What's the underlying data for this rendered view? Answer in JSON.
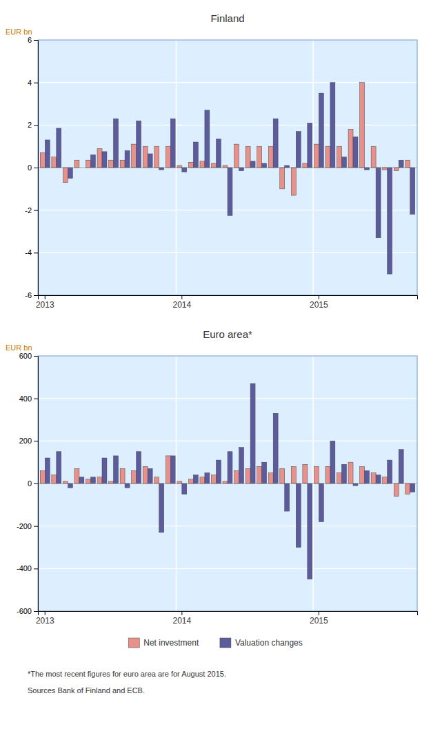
{
  "chart_data": [
    {
      "type": "bar",
      "title": "Finland",
      "ylabel": "EUR bn",
      "categories": [
        "2013",
        null,
        null,
        null,
        null,
        null,
        null,
        null,
        null,
        null,
        null,
        null,
        "2014",
        null,
        null,
        null,
        null,
        null,
        null,
        null,
        null,
        null,
        null,
        null,
        "2015",
        null,
        null,
        null,
        null,
        null,
        null,
        null,
        null
      ],
      "series": [
        {
          "name": "Net investment",
          "color": "#e8918a",
          "values": [
            0.7,
            0.5,
            -0.7,
            0.35,
            0.35,
            0.9,
            0.35,
            0.35,
            1.1,
            1.0,
            1.0,
            1.0,
            0.1,
            0.25,
            0.3,
            0.2,
            0.1,
            1.1,
            1.0,
            1.0,
            1.0,
            -1.0,
            -1.3,
            0.2,
            1.1,
            1.0,
            1.0,
            1.8,
            4.0,
            1.0,
            -0.1,
            -0.15,
            0.35
          ]
        },
        {
          "name": "Valuation changes",
          "color": "#5b5b9e",
          "values": [
            1.3,
            1.85,
            -0.5,
            0.0,
            0.6,
            0.75,
            2.3,
            0.8,
            2.2,
            0.65,
            -0.1,
            2.3,
            -0.2,
            1.2,
            2.7,
            1.35,
            -2.25,
            -0.15,
            0.3,
            0.2,
            2.3,
            0.1,
            1.7,
            2.1,
            3.5,
            4.0,
            0.5,
            1.45,
            -0.1,
            -3.3,
            -5.0,
            0.35,
            -2.2
          ]
        }
      ],
      "ylim": [
        -6,
        6
      ],
      "yticks": [
        -6,
        -4,
        -2,
        0,
        2,
        4,
        6
      ],
      "grid": true
    },
    {
      "type": "bar",
      "title": "Euro area*",
      "ylabel": "EUR bn",
      "categories": [
        "2013",
        null,
        null,
        null,
        null,
        null,
        null,
        null,
        null,
        null,
        null,
        null,
        "2014",
        null,
        null,
        null,
        null,
        null,
        null,
        null,
        null,
        null,
        null,
        null,
        "2015",
        null,
        null,
        null,
        null,
        null,
        null,
        null,
        null
      ],
      "series": [
        {
          "name": "Net investment",
          "color": "#e8918a",
          "values": [
            60,
            40,
            10,
            70,
            20,
            30,
            10,
            70,
            60,
            80,
            30,
            130,
            10,
            20,
            30,
            40,
            10,
            60,
            70,
            80,
            50,
            70,
            80,
            90,
            80,
            80,
            50,
            100,
            80,
            50,
            30,
            -60,
            -50
          ]
        },
        {
          "name": "Valuation changes",
          "color": "#5b5b9e",
          "values": [
            120,
            150,
            -20,
            30,
            30,
            120,
            130,
            -20,
            150,
            70,
            -230,
            130,
            -50,
            40,
            50,
            110,
            150,
            170,
            470,
            100,
            330,
            -130,
            -300,
            -450,
            -180,
            200,
            90,
            -10,
            60,
            40,
            110,
            160,
            -40
          ]
        }
      ],
      "ylim": [
        -600,
        600
      ],
      "yticks": [
        -600,
        -400,
        -200,
        0,
        200,
        400,
        600
      ],
      "grid": true,
      "legend": "bottom",
      "annotations": [
        "*The most recent figures for euro area are for August 2015.",
        "Sources Bank of Finland and ECB."
      ]
    }
  ]
}
